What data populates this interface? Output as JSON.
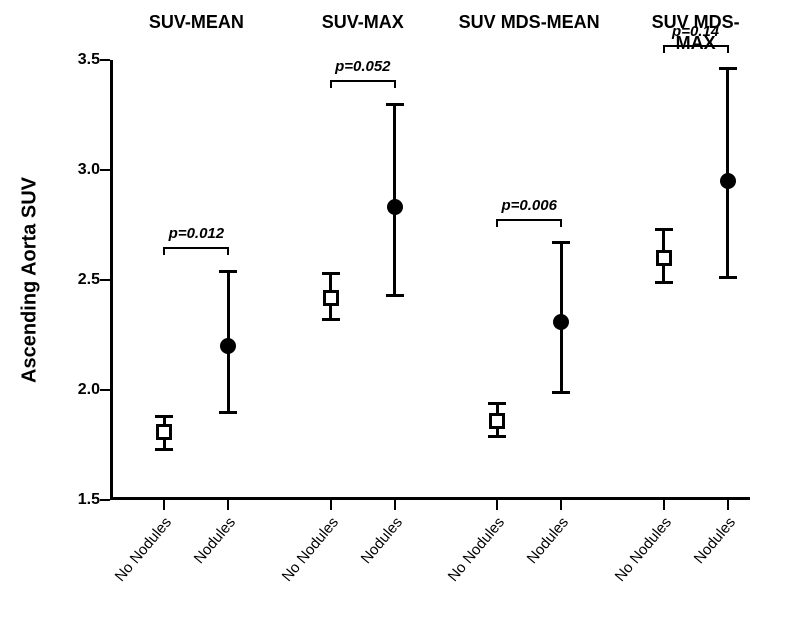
{
  "chart": {
    "type": "scatter-errorbar",
    "background_color": "#ffffff",
    "axis_color": "#000000",
    "ylabel": "Ascending Aorta SUV",
    "ylabel_fontsize": 20,
    "header_fontsize": 18,
    "tick_fontsize": 16,
    "xtick_fontsize": 15,
    "pval_fontsize": 15,
    "ylim": [
      1.5,
      3.5
    ],
    "yticks": [
      1.5,
      2.0,
      2.5,
      3.0,
      3.5
    ],
    "ytick_labels": [
      "1.5",
      "2.0",
      "2.5",
      "3.0",
      "3.5"
    ],
    "panels": [
      {
        "label": "SUV-MEAN",
        "pvalue": "p=0.012"
      },
      {
        "label": "SUV-MAX",
        "pvalue": "p=0.052"
      },
      {
        "label": "SUV MDS-MEAN",
        "pvalue": "p=0.006"
      },
      {
        "label": "SUV MDS-MAX",
        "pvalue": "p=0.14"
      }
    ],
    "groups": [
      "No Nodules",
      "Nodules"
    ],
    "marker_square_size": 16,
    "marker_circle_size": 16,
    "cap_width": 18,
    "series": [
      {
        "panel": 0,
        "group": 0,
        "mean": 1.81,
        "low": 1.73,
        "high": 1.88,
        "marker": "square"
      },
      {
        "panel": 0,
        "group": 1,
        "mean": 2.2,
        "low": 1.9,
        "high": 2.54,
        "marker": "circle"
      },
      {
        "panel": 1,
        "group": 0,
        "mean": 2.42,
        "low": 2.32,
        "high": 2.53,
        "marker": "square"
      },
      {
        "panel": 1,
        "group": 1,
        "mean": 2.83,
        "low": 2.43,
        "high": 3.3,
        "marker": "circle"
      },
      {
        "panel": 2,
        "group": 0,
        "mean": 1.86,
        "low": 1.79,
        "high": 1.94,
        "marker": "square"
      },
      {
        "panel": 2,
        "group": 1,
        "mean": 2.31,
        "low": 1.99,
        "high": 2.67,
        "marker": "circle"
      },
      {
        "panel": 3,
        "group": 0,
        "mean": 2.6,
        "low": 2.49,
        "high": 2.73,
        "marker": "square"
      },
      {
        "panel": 3,
        "group": 1,
        "mean": 2.95,
        "low": 2.51,
        "high": 3.46,
        "marker": "circle"
      }
    ],
    "x_positions": [
      0.085,
      0.185,
      0.345,
      0.445,
      0.605,
      0.705,
      0.865,
      0.965
    ],
    "bracket_drop": 8
  }
}
